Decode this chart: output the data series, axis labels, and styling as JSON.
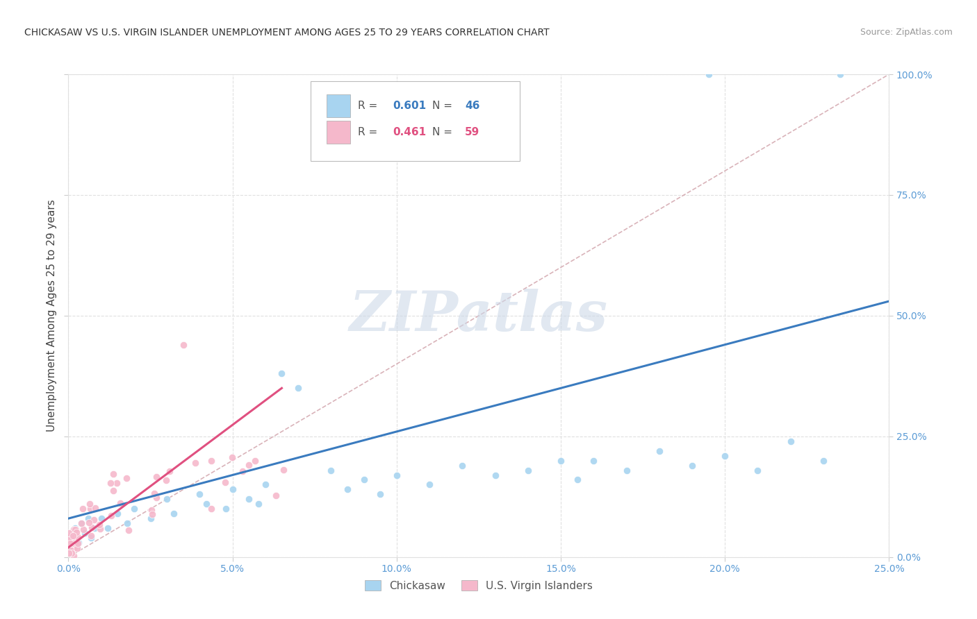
{
  "title": "CHICKASAW VS U.S. VIRGIN ISLANDER UNEMPLOYMENT AMONG AGES 25 TO 29 YEARS CORRELATION CHART",
  "source": "Source: ZipAtlas.com",
  "ylabel": "Unemployment Among Ages 25 to 29 years",
  "xlim": [
    0,
    0.25
  ],
  "ylim": [
    0,
    1.0
  ],
  "xticks": [
    0.0,
    0.05,
    0.1,
    0.15,
    0.2,
    0.25
  ],
  "yticks": [
    0.0,
    0.25,
    0.5,
    0.75,
    1.0
  ],
  "chickasaw_R": 0.601,
  "chickasaw_N": 46,
  "virgin_R": 0.461,
  "virgin_N": 59,
  "chickasaw_color": "#a8d4f0",
  "virgin_color": "#f5b8cb",
  "chickasaw_line_color": "#3a7bbf",
  "virgin_line_color": "#e05080",
  "ref_line_color": "#d0a0a8",
  "watermark": "ZIPatlas",
  "watermark_color": "#cdd9e8",
  "legend_label_chickasaw": "Chickasaw",
  "legend_label_virgin": "U.S. Virgin Islanders",
  "background_color": "#ffffff",
  "chick_line_x0": 0.0,
  "chick_line_y0": 0.08,
  "chick_line_x1": 0.25,
  "chick_line_y1": 0.53,
  "virgin_line_x0": 0.0,
  "virgin_line_y0": 0.02,
  "virgin_line_x1": 0.065,
  "virgin_line_y1": 0.35,
  "ref_line_x0": 0.0,
  "ref_line_y0": 0.0,
  "ref_line_x1": 0.25,
  "ref_line_y1": 1.0
}
